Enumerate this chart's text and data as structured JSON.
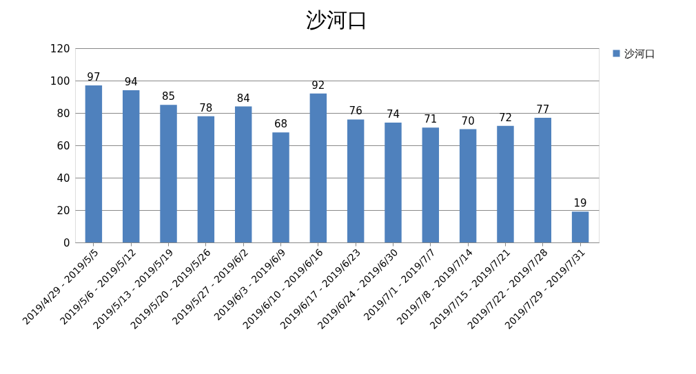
{
  "chart_data": {
    "type": "bar",
    "title": "沙河口",
    "categories": [
      "2019/4/29 - 2019/5/5",
      "2019/5/6 - 2019/5/12",
      "2019/5/13 - 2019/5/19",
      "2019/5/20 - 2019/5/26",
      "2019/5/27 - 2019/6/2",
      "2019/6/3 - 2019/6/9",
      "2019/6/10 - 2019/6/16",
      "2019/6/17 - 2019/6/23",
      "2019/6/24 - 2019/6/30",
      "2019/7/1 - 2019/7/7",
      "2019/7/8 - 2019/7/14",
      "2019/7/15 - 2019/7/21",
      "2019/7/22 - 2019/7/28",
      "2019/7/29 - 2019/7/31"
    ],
    "series": [
      {
        "name": "沙河口",
        "color": "#4f81bd",
        "values": [
          97,
          94,
          85,
          78,
          84,
          68,
          92,
          76,
          74,
          71,
          70,
          72,
          77,
          19
        ]
      }
    ],
    "ylim": [
      0,
      120
    ],
    "yticks": [
      0,
      20,
      40,
      60,
      80,
      100,
      120
    ],
    "grid": "y",
    "legend": "right",
    "data_labels": true
  }
}
